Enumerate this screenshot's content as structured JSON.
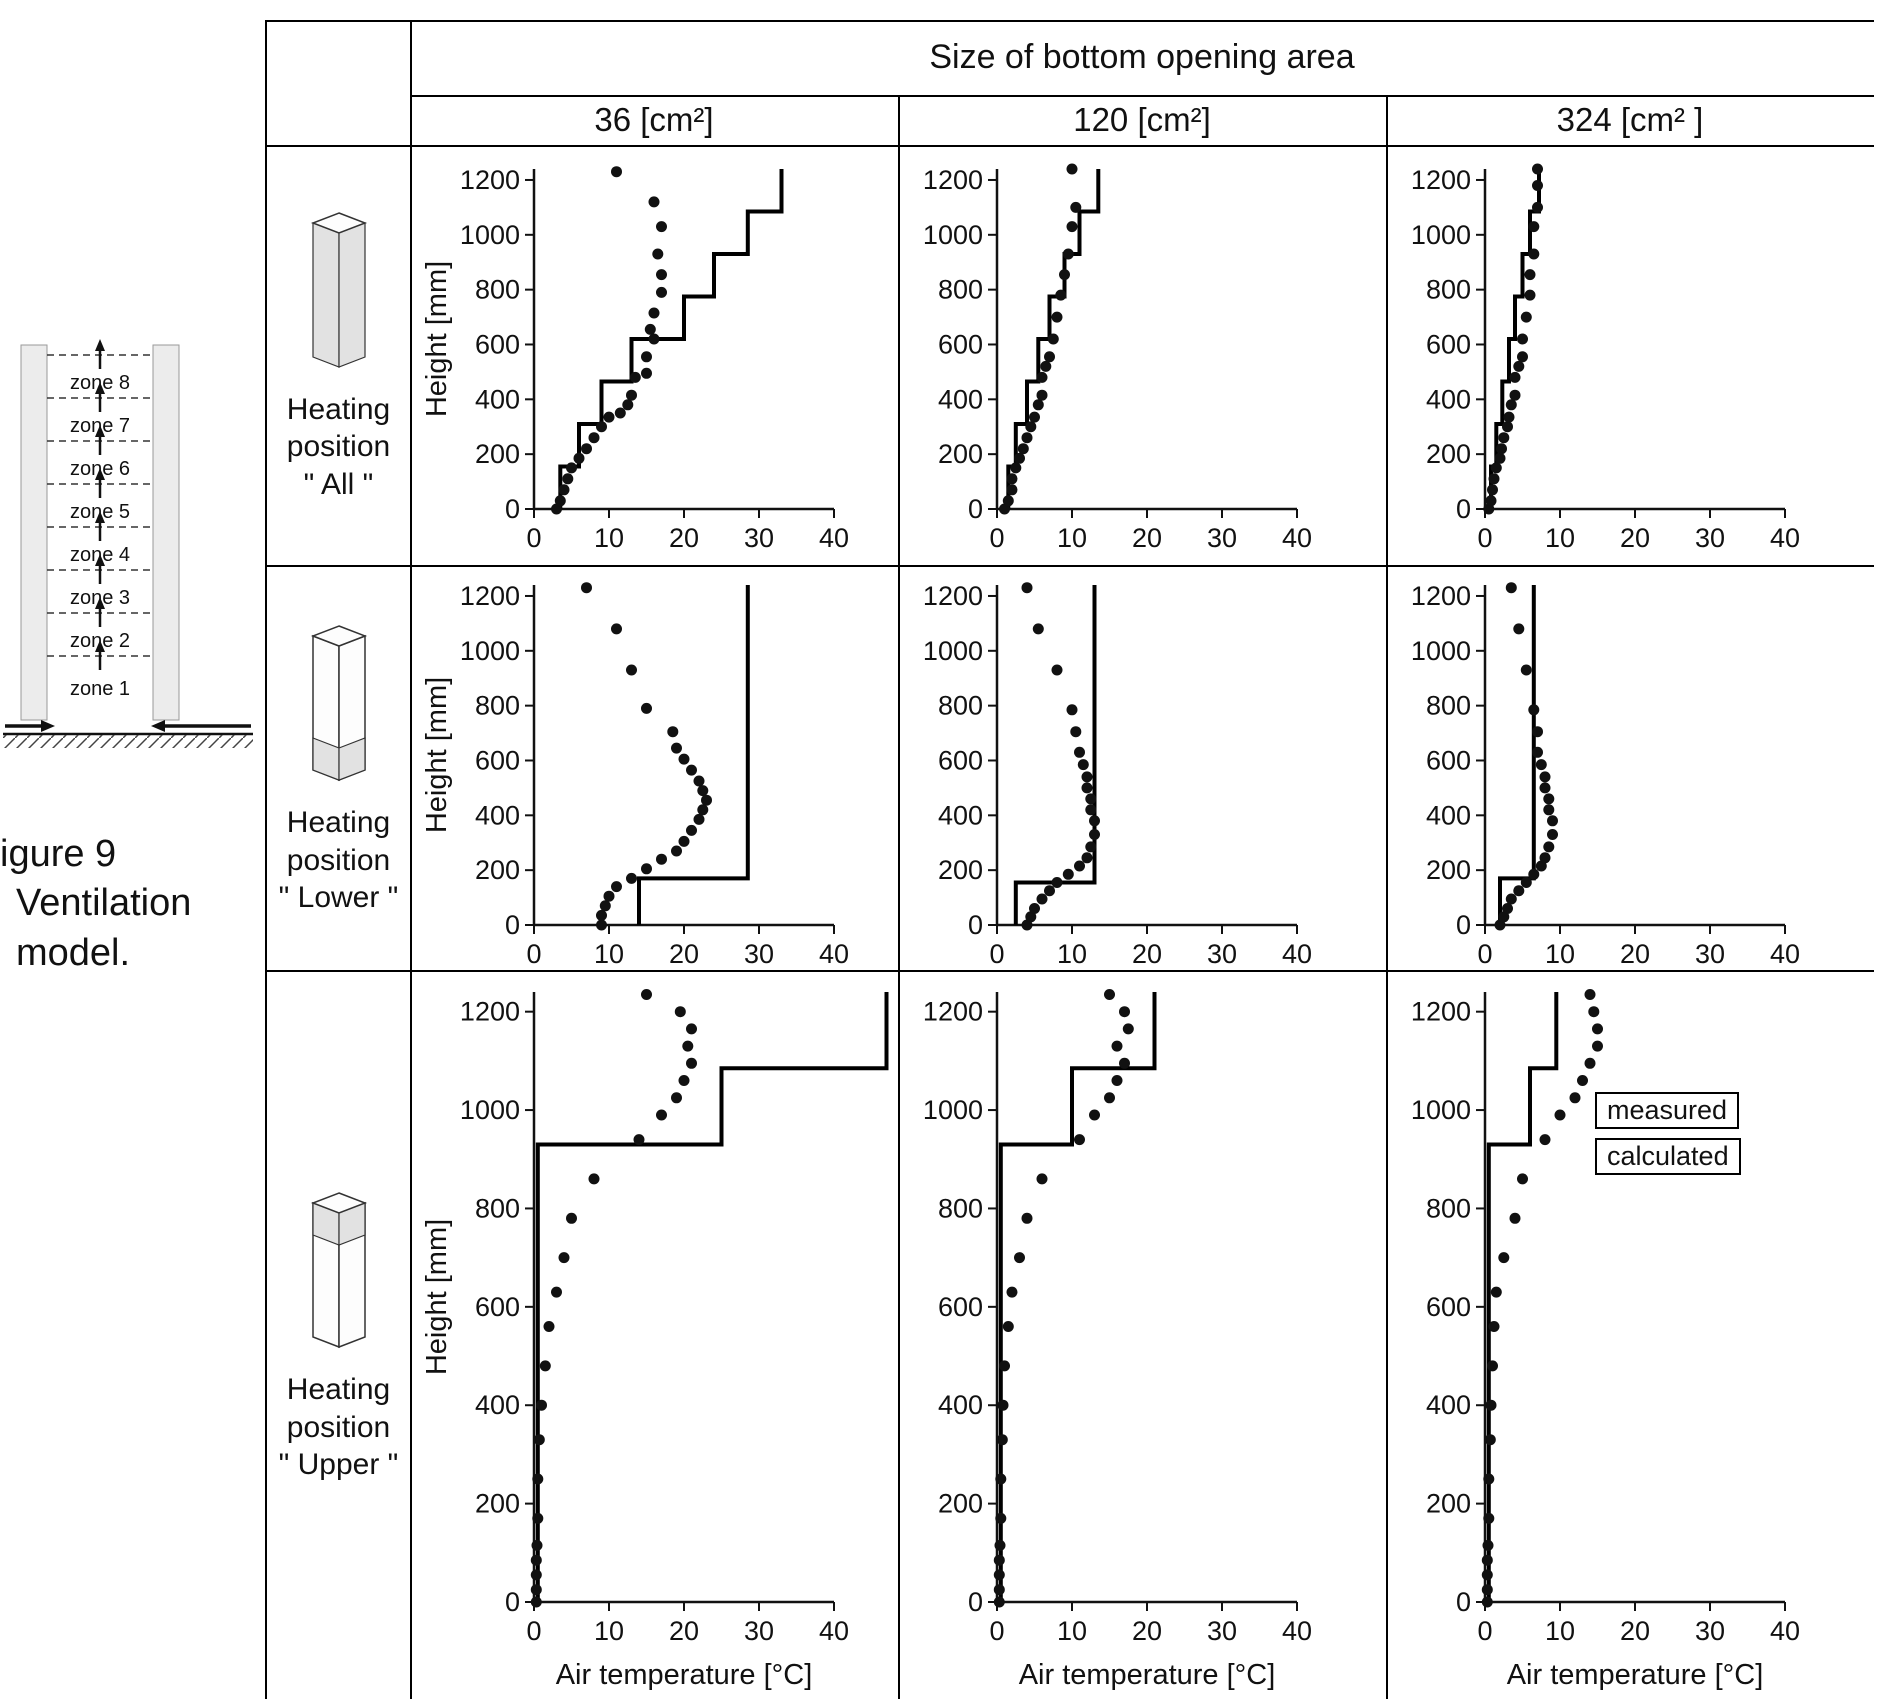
{
  "figure": {
    "caption_lines": [
      "igure 9",
      "Ventilation",
      "model."
    ],
    "zones": [
      "zone 8",
      "zone 7",
      "zone 6",
      "zone 5",
      "zone 4",
      "zone 3",
      "zone 2",
      "zone 1"
    ]
  },
  "table": {
    "col_group_title": "Size of bottom opening area",
    "col_headers": [
      "36 [cm²]",
      "120 [cm²]",
      "324 [cm² ]"
    ],
    "rows": [
      {
        "label_lines": [
          "Heating",
          "position",
          "\" All \""
        ]
      },
      {
        "label_lines": [
          "Heating",
          "position",
          "\" Lower \""
        ]
      },
      {
        "label_lines": [
          "Heating",
          "position",
          "\" Upper \""
        ]
      }
    ]
  },
  "axes": {
    "x_label": "Air temperature [°C]",
    "y_label": "Height [mm]",
    "x_ticks": [
      0,
      10,
      20,
      30,
      40
    ],
    "y_ticks": [
      0,
      200,
      400,
      600,
      800,
      1000,
      1200
    ],
    "xlim": [
      0,
      40
    ],
    "ylim": [
      0,
      1240
    ]
  },
  "legend": {
    "measured": "measured",
    "calculated": "calculated"
  },
  "chart_data": [
    {
      "type": "scatter",
      "heating_position": "All",
      "opening_area_cm2": 36,
      "measured": [
        [
          3,
          0
        ],
        [
          3.5,
          30
        ],
        [
          4,
          70
        ],
        [
          4.5,
          110
        ],
        [
          5,
          150
        ],
        [
          6,
          185
        ],
        [
          7,
          220
        ],
        [
          8,
          260
        ],
        [
          9,
          300
        ],
        [
          10,
          335
        ],
        [
          11.5,
          350
        ],
        [
          12.5,
          380
        ],
        [
          13,
          415
        ],
        [
          13.5,
          480
        ],
        [
          15,
          495
        ],
        [
          15,
          555
        ],
        [
          16,
          620
        ],
        [
          15.5,
          655
        ],
        [
          16,
          715
        ],
        [
          17,
          790
        ],
        [
          17,
          855
        ],
        [
          16.5,
          930
        ],
        [
          17,
          1030
        ],
        [
          16,
          1120
        ],
        [
          11,
          1230
        ]
      ],
      "calculated": [
        [
          3.5,
          0
        ],
        [
          3.5,
          155
        ],
        [
          6,
          155
        ],
        [
          6,
          310
        ],
        [
          9,
          310
        ],
        [
          9,
          465
        ],
        [
          13,
          465
        ],
        [
          13,
          620
        ],
        [
          20,
          620
        ],
        [
          20,
          775
        ],
        [
          24,
          775
        ],
        [
          24,
          930
        ],
        [
          28.5,
          930
        ],
        [
          28.5,
          1085
        ],
        [
          33,
          1085
        ],
        [
          33,
          1240
        ]
      ]
    },
    {
      "type": "scatter",
      "heating_position": "All",
      "opening_area_cm2": 120,
      "measured": [
        [
          1,
          0
        ],
        [
          1.5,
          30
        ],
        [
          2,
          70
        ],
        [
          2,
          110
        ],
        [
          2.5,
          150
        ],
        [
          3,
          185
        ],
        [
          3.5,
          220
        ],
        [
          4,
          260
        ],
        [
          4.5,
          300
        ],
        [
          5,
          335
        ],
        [
          5.5,
          380
        ],
        [
          6,
          415
        ],
        [
          6,
          480
        ],
        [
          6.5,
          520
        ],
        [
          7,
          555
        ],
        [
          7.5,
          620
        ],
        [
          8,
          700
        ],
        [
          8.5,
          780
        ],
        [
          9,
          855
        ],
        [
          9.5,
          930
        ],
        [
          10,
          1030
        ],
        [
          10.5,
          1100
        ],
        [
          10,
          1240
        ]
      ],
      "calculated": [
        [
          1.5,
          0
        ],
        [
          1.5,
          155
        ],
        [
          2.5,
          155
        ],
        [
          2.5,
          310
        ],
        [
          4,
          310
        ],
        [
          4,
          465
        ],
        [
          5.5,
          465
        ],
        [
          5.5,
          620
        ],
        [
          7,
          620
        ],
        [
          7,
          775
        ],
        [
          9,
          775
        ],
        [
          9,
          930
        ],
        [
          11,
          930
        ],
        [
          11,
          1085
        ],
        [
          13.5,
          1085
        ],
        [
          13.5,
          1240
        ]
      ]
    },
    {
      "type": "scatter",
      "heating_position": "All",
      "opening_area_cm2": 324,
      "measured": [
        [
          0.5,
          0
        ],
        [
          0.8,
          30
        ],
        [
          1,
          70
        ],
        [
          1.2,
          110
        ],
        [
          1.5,
          150
        ],
        [
          2,
          185
        ],
        [
          2.2,
          220
        ],
        [
          2.5,
          260
        ],
        [
          3,
          300
        ],
        [
          3.2,
          335
        ],
        [
          3.5,
          380
        ],
        [
          4,
          415
        ],
        [
          4,
          480
        ],
        [
          4.5,
          520
        ],
        [
          5,
          555
        ],
        [
          5,
          620
        ],
        [
          5.5,
          700
        ],
        [
          6,
          780
        ],
        [
          6,
          855
        ],
        [
          6.5,
          930
        ],
        [
          6.5,
          1030
        ],
        [
          7,
          1100
        ],
        [
          7,
          1180
        ],
        [
          7,
          1240
        ]
      ],
      "calculated": [
        [
          0.8,
          0
        ],
        [
          0.8,
          155
        ],
        [
          1.5,
          155
        ],
        [
          1.5,
          310
        ],
        [
          2.3,
          310
        ],
        [
          2.3,
          465
        ],
        [
          3.2,
          465
        ],
        [
          3.2,
          620
        ],
        [
          4,
          620
        ],
        [
          4,
          775
        ],
        [
          5,
          775
        ],
        [
          5,
          930
        ],
        [
          6,
          930
        ],
        [
          6,
          1085
        ],
        [
          7.2,
          1085
        ],
        [
          7.2,
          1240
        ]
      ]
    },
    {
      "type": "scatter",
      "heating_position": "Lower",
      "opening_area_cm2": 36,
      "measured": [
        [
          9,
          0
        ],
        [
          9,
          35
        ],
        [
          9.5,
          70
        ],
        [
          10,
          105
        ],
        [
          11,
          140
        ],
        [
          13,
          170
        ],
        [
          15,
          205
        ],
        [
          17,
          240
        ],
        [
          19,
          270
        ],
        [
          20,
          305
        ],
        [
          21,
          345
        ],
        [
          22,
          385
        ],
        [
          22.5,
          420
        ],
        [
          23,
          455
        ],
        [
          22.5,
          490
        ],
        [
          22,
          525
        ],
        [
          21,
          565
        ],
        [
          20,
          605
        ],
        [
          19,
          645
        ],
        [
          18.5,
          705
        ],
        [
          15,
          790
        ],
        [
          13,
          930
        ],
        [
          11,
          1080
        ],
        [
          7,
          1230
        ]
      ],
      "calculated": [
        [
          14,
          0
        ],
        [
          14,
          170
        ],
        [
          28.5,
          170
        ],
        [
          28.5,
          1240
        ]
      ]
    },
    {
      "type": "scatter",
      "heating_position": "Lower",
      "opening_area_cm2": 120,
      "measured": [
        [
          4,
          0
        ],
        [
          4.5,
          30
        ],
        [
          5,
          60
        ],
        [
          6,
          95
        ],
        [
          7,
          125
        ],
        [
          8,
          155
        ],
        [
          9.5,
          185
        ],
        [
          11,
          215
        ],
        [
          12,
          245
        ],
        [
          12.5,
          285
        ],
        [
          13,
          330
        ],
        [
          13,
          380
        ],
        [
          12.5,
          420
        ],
        [
          12.5,
          460
        ],
        [
          12,
          500
        ],
        [
          12,
          540
        ],
        [
          11.5,
          585
        ],
        [
          11,
          630
        ],
        [
          10.5,
          705
        ],
        [
          10,
          785
        ],
        [
          8,
          930
        ],
        [
          5.5,
          1080
        ],
        [
          4,
          1230
        ]
      ],
      "calculated": [
        [
          2.5,
          0
        ],
        [
          2.5,
          155
        ],
        [
          13,
          155
        ],
        [
          13,
          1240
        ]
      ]
    },
    {
      "type": "scatter",
      "heating_position": "Lower",
      "opening_area_cm2": 324,
      "measured": [
        [
          2,
          0
        ],
        [
          2.5,
          30
        ],
        [
          3,
          60
        ],
        [
          3.5,
          95
        ],
        [
          4.5,
          125
        ],
        [
          5.5,
          155
        ],
        [
          6.5,
          185
        ],
        [
          7.5,
          215
        ],
        [
          8,
          245
        ],
        [
          8.5,
          285
        ],
        [
          9,
          330
        ],
        [
          9,
          380
        ],
        [
          8.5,
          420
        ],
        [
          8.5,
          460
        ],
        [
          8,
          500
        ],
        [
          8,
          540
        ],
        [
          7.5,
          585
        ],
        [
          7,
          630
        ],
        [
          7,
          705
        ],
        [
          6.5,
          785
        ],
        [
          5.5,
          930
        ],
        [
          4.5,
          1080
        ],
        [
          3.5,
          1230
        ]
      ],
      "calculated": [
        [
          2,
          0
        ],
        [
          2,
          170
        ],
        [
          6.5,
          170
        ],
        [
          6.5,
          1240
        ]
      ]
    },
    {
      "type": "scatter",
      "heating_position": "Upper",
      "opening_area_cm2": 36,
      "measured": [
        [
          0.3,
          0
        ],
        [
          0.3,
          25
        ],
        [
          0.3,
          55
        ],
        [
          0.3,
          85
        ],
        [
          0.4,
          115
        ],
        [
          0.5,
          170
        ],
        [
          0.5,
          250
        ],
        [
          0.7,
          330
        ],
        [
          1,
          400
        ],
        [
          1.5,
          480
        ],
        [
          2,
          560
        ],
        [
          3,
          630
        ],
        [
          4,
          700
        ],
        [
          5,
          780
        ],
        [
          8,
          860
        ],
        [
          14,
          940
        ],
        [
          17,
          990
        ],
        [
          19,
          1025
        ],
        [
          20,
          1060
        ],
        [
          21,
          1095
        ],
        [
          20.5,
          1130
        ],
        [
          21,
          1165
        ],
        [
          19.5,
          1200
        ],
        [
          15,
          1235
        ]
      ],
      "calculated": [
        [
          0.5,
          0
        ],
        [
          0.5,
          930
        ],
        [
          25,
          930
        ],
        [
          25,
          1085
        ],
        [
          47,
          1085
        ],
        [
          47,
          1240
        ]
      ]
    },
    {
      "type": "scatter",
      "heating_position": "Upper",
      "opening_area_cm2": 120,
      "measured": [
        [
          0.3,
          0
        ],
        [
          0.3,
          25
        ],
        [
          0.3,
          55
        ],
        [
          0.3,
          85
        ],
        [
          0.4,
          115
        ],
        [
          0.5,
          170
        ],
        [
          0.5,
          250
        ],
        [
          0.7,
          330
        ],
        [
          0.8,
          400
        ],
        [
          1,
          480
        ],
        [
          1.5,
          560
        ],
        [
          2,
          630
        ],
        [
          3,
          700
        ],
        [
          4,
          780
        ],
        [
          6,
          860
        ],
        [
          11,
          940
        ],
        [
          13,
          990
        ],
        [
          15,
          1025
        ],
        [
          16,
          1060
        ],
        [
          17,
          1095
        ],
        [
          16,
          1130
        ],
        [
          17.5,
          1165
        ],
        [
          17,
          1200
        ],
        [
          15,
          1235
        ]
      ],
      "calculated": [
        [
          0.5,
          0
        ],
        [
          0.5,
          930
        ],
        [
          10,
          930
        ],
        [
          10,
          1085
        ],
        [
          21,
          1085
        ],
        [
          21,
          1240
        ]
      ]
    },
    {
      "type": "scatter",
      "heating_position": "Upper",
      "opening_area_cm2": 324,
      "measured": [
        [
          0.3,
          0
        ],
        [
          0.3,
          25
        ],
        [
          0.3,
          55
        ],
        [
          0.3,
          85
        ],
        [
          0.4,
          115
        ],
        [
          0.5,
          170
        ],
        [
          0.5,
          250
        ],
        [
          0.7,
          330
        ],
        [
          0.8,
          400
        ],
        [
          1,
          480
        ],
        [
          1.2,
          560
        ],
        [
          1.5,
          630
        ],
        [
          2.5,
          700
        ],
        [
          4,
          780
        ],
        [
          5,
          860
        ],
        [
          8,
          940
        ],
        [
          10,
          990
        ],
        [
          12,
          1025
        ],
        [
          13,
          1060
        ],
        [
          14,
          1095
        ],
        [
          15,
          1130
        ],
        [
          15,
          1165
        ],
        [
          14.5,
          1200
        ],
        [
          14,
          1235
        ]
      ],
      "calculated": [
        [
          0.5,
          0
        ],
        [
          0.5,
          930
        ],
        [
          6,
          930
        ],
        [
          6,
          1085
        ],
        [
          9.5,
          1085
        ],
        [
          9.5,
          1240
        ]
      ]
    }
  ]
}
